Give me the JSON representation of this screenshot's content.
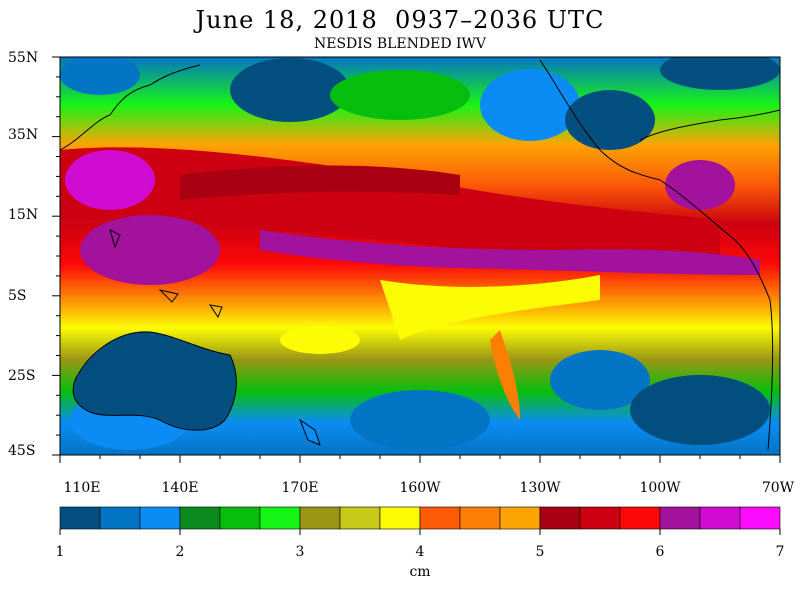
{
  "title": "June 18, 2018  0937–2036 UTC",
  "subtitle": "NESDIS BLENDED IWV",
  "lat_labels": [
    "55N",
    "35N",
    "15N",
    "5S",
    "25S",
    "45S"
  ],
  "lon_labels": [
    "110E",
    "140E",
    "170E",
    "160W",
    "130W",
    "100W",
    "70W"
  ],
  "colorbar": {
    "ticks": [
      "1",
      "2",
      "3",
      "4",
      "5",
      "6",
      "7"
    ],
    "unit": "cm",
    "colors": [
      "#024f7f",
      "#0474c4",
      "#0b8cf5",
      "#0a8a1e",
      "#08be0c",
      "#16f416",
      "#9a9614",
      "#c8c818",
      "#fcfc04",
      "#fc5a06",
      "#fc7f04",
      "#fca404",
      "#a80012",
      "#cc0010",
      "#fc0808",
      "#a2129c",
      "#d00cd2",
      "#fc0cfc"
    ]
  }
}
